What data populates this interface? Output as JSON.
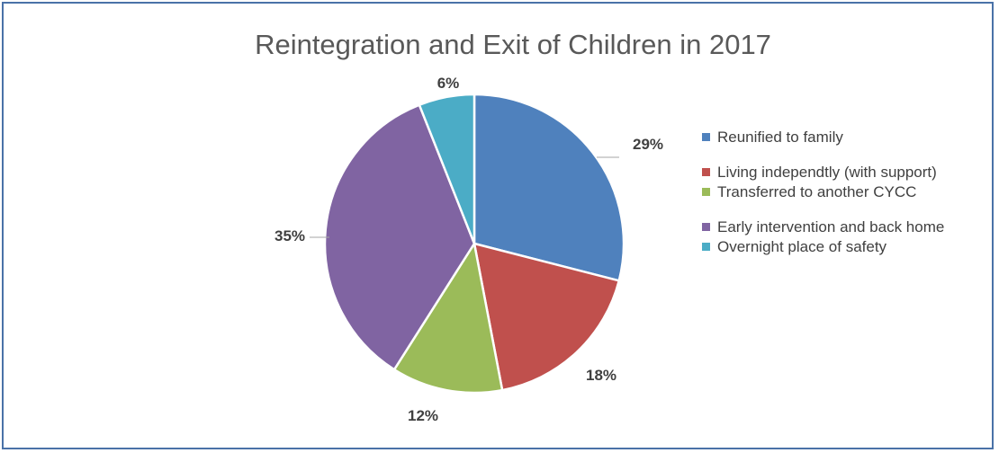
{
  "chart_data": {
    "type": "pie",
    "title": "Reintegration and Exit of Children in 2017",
    "legend_position": "right",
    "slices": [
      {
        "label": "Reunified to family",
        "value": 29,
        "display": "29%",
        "color": "#4f81bd"
      },
      {
        "label": "Living independtly (with support)",
        "value": 18,
        "display": "18%",
        "color": "#c0504d"
      },
      {
        "label": "Transferred to another CYCC",
        "value": 12,
        "display": "12%",
        "color": "#9bbb59"
      },
      {
        "label": "Early intervention and back home",
        "value": 35,
        "display": "35%",
        "color": "#8064a2"
      },
      {
        "label": "Overnight place of safety",
        "value": 6,
        "display": "6%",
        "color": "#4bacc6"
      }
    ]
  }
}
